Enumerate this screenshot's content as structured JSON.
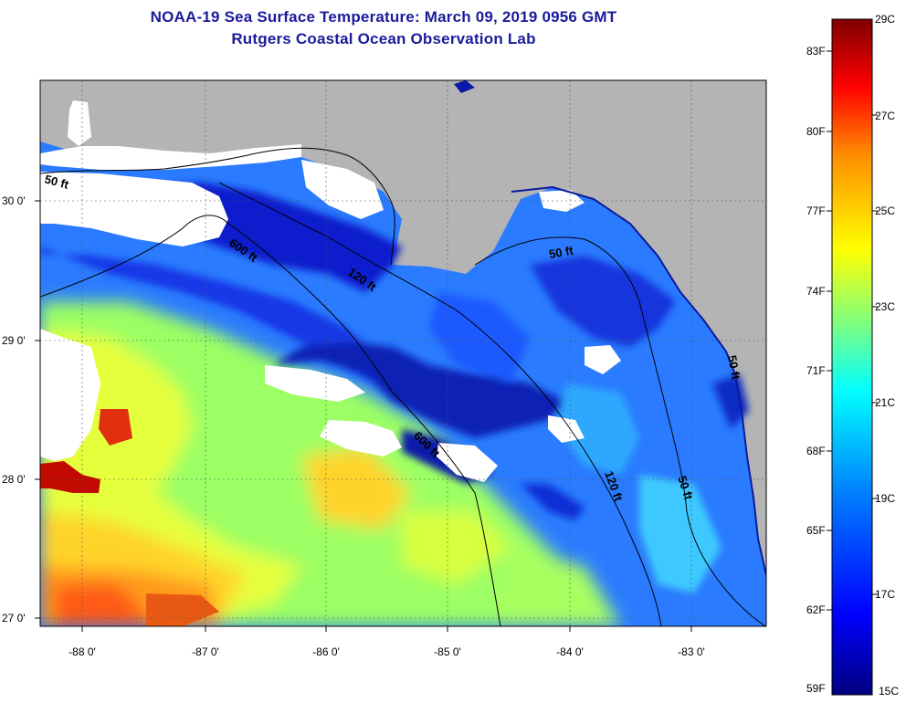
{
  "header": {
    "title": "NOAA-19 Sea Surface Temperature:  March 09, 2019 0956 GMT",
    "subtitle": "Rutgers Coastal Ocean Observation Lab"
  },
  "map": {
    "lon_ticks": [
      "-88 0'",
      "-87 0'",
      "-86 0'",
      "-85 0'",
      "-84 0'",
      "-83 0'"
    ],
    "lat_ticks": [
      "30 0'",
      "29 0'",
      "28 0'",
      "27 0'"
    ],
    "contour_labels": [
      "50 ft",
      "600 ft",
      "120 ft",
      "50 ft",
      "600 ft",
      "120 ft",
      "50 ft",
      "50 ft"
    ],
    "colors": {
      "land": "#b4b4b4",
      "cloud": "#ffffff",
      "frame": "#000000"
    }
  },
  "colorbar": {
    "fahrenheit_labels": [
      "83F",
      "80F",
      "77F",
      "74F",
      "71F",
      "68F",
      "65F",
      "62F",
      "59F"
    ],
    "celsius_labels": [
      "29C",
      "27C",
      "25C",
      "23C",
      "21C",
      "19C",
      "17C",
      "15C"
    ],
    "colors": [
      "#7f0000",
      "#ff0000",
      "#ff8c00",
      "#ffff00",
      "#80ff80",
      "#00ffff",
      "#0080ff",
      "#0000ff",
      "#00007f"
    ]
  }
}
